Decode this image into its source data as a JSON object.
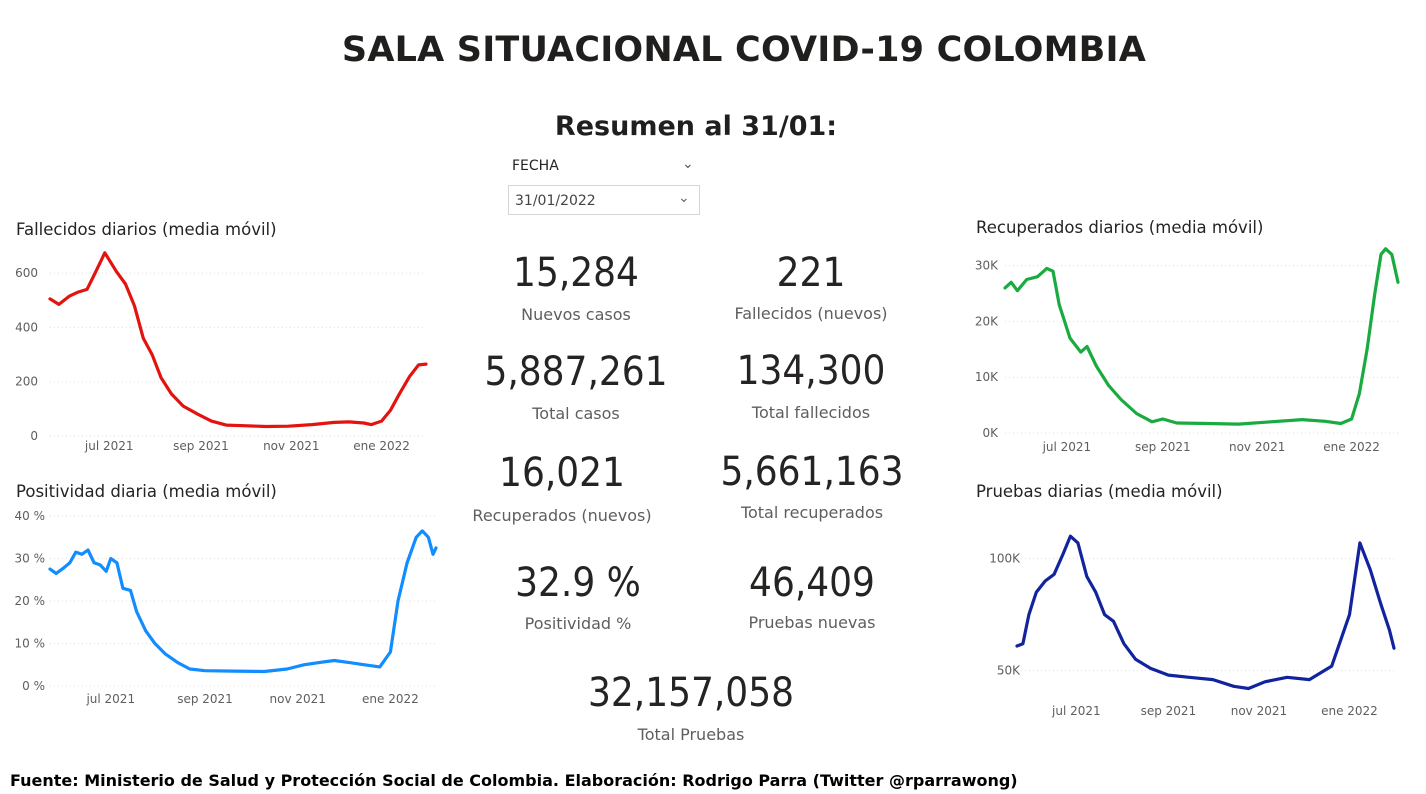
{
  "header": {
    "title": "SALA SITUACIONAL COVID-19 COLOMBIA",
    "summary": "Resumen al 31/01:"
  },
  "slicer": {
    "label": "FECHA",
    "value": "31/01/2022"
  },
  "kpis": [
    {
      "value": "15,284",
      "label": "Nuevos casos"
    },
    {
      "value": "221",
      "label": "Fallecidos (nuevos)"
    },
    {
      "value": "5,887,261",
      "label": "Total casos"
    },
    {
      "value": "134,300",
      "label": "Total fallecidos"
    },
    {
      "value": "16,021",
      "label": "Recuperados (nuevos)"
    },
    {
      "value": "5,661,163",
      "label": "Total recuperados"
    },
    {
      "value": "32.9 %",
      "label": "Positividad %"
    },
    {
      "value": "46,409",
      "label": "Pruebas nuevas"
    },
    {
      "value": "32,157,058",
      "label": "Total Pruebas"
    }
  ],
  "footer": {
    "source": "Fuente: Ministerio de Salud y Protección Social de Colombia. Elaboración: Rodrigo Parra (Twitter @rparrawong)"
  },
  "chart_data": [
    {
      "id": "fallecidos",
      "type": "line",
      "title": "Fallecidos diarios (media móvil)",
      "color": "#e3140f",
      "x_range": [
        "2021-05-22",
        "2022-01-31"
      ],
      "x_ticks": [
        {
          "date": "2021-07-01",
          "label": "jul 2021"
        },
        {
          "date": "2021-09-01",
          "label": "sep 2021"
        },
        {
          "date": "2021-11-01",
          "label": "nov 2021"
        },
        {
          "date": "2022-01-01",
          "label": "ene 2022"
        }
      ],
      "ylim": [
        0,
        700
      ],
      "y_ticks": [
        {
          "value": 0,
          "label": "0"
        },
        {
          "value": 200,
          "label": "200"
        },
        {
          "value": 400,
          "label": "400"
        },
        {
          "value": 600,
          "label": "600"
        }
      ],
      "series": [
        {
          "points": [
            [
              "2021-05-22",
              505
            ],
            [
              "2021-05-28",
              485
            ],
            [
              "2021-06-04",
              515
            ],
            [
              "2021-06-10",
              530
            ],
            [
              "2021-06-16",
              540
            ],
            [
              "2021-06-21",
              595
            ],
            [
              "2021-06-25",
              640
            ],
            [
              "2021-06-28",
              675
            ],
            [
              "2021-07-02",
              640
            ],
            [
              "2021-07-06",
              605
            ],
            [
              "2021-07-12",
              560
            ],
            [
              "2021-07-18",
              480
            ],
            [
              "2021-07-24",
              360
            ],
            [
              "2021-07-30",
              300
            ],
            [
              "2021-08-05",
              215
            ],
            [
              "2021-08-12",
              155
            ],
            [
              "2021-08-20",
              110
            ],
            [
              "2021-08-30",
              80
            ],
            [
              "2021-09-08",
              55
            ],
            [
              "2021-09-18",
              40
            ],
            [
              "2021-09-30",
              38
            ],
            [
              "2021-10-15",
              35
            ],
            [
              "2021-10-30",
              36
            ],
            [
              "2021-11-15",
              42
            ],
            [
              "2021-11-30",
              50
            ],
            [
              "2021-12-10",
              52
            ],
            [
              "2021-12-20",
              48
            ],
            [
              "2021-12-25",
              42
            ],
            [
              "2022-01-01",
              55
            ],
            [
              "2022-01-07",
              95
            ],
            [
              "2022-01-13",
              155
            ],
            [
              "2022-01-20",
              220
            ],
            [
              "2022-01-26",
              262
            ],
            [
              "2022-01-31",
              265
            ]
          ]
        }
      ]
    },
    {
      "id": "positividad",
      "type": "line",
      "title": "Positividad diaria (media móvil)",
      "color": "#118dff",
      "x_range": [
        "2021-05-22",
        "2022-01-31"
      ],
      "x_ticks": [
        {
          "date": "2021-07-01",
          "label": "jul 2021"
        },
        {
          "date": "2021-09-01",
          "label": "sep 2021"
        },
        {
          "date": "2021-11-01",
          "label": "nov 2021"
        },
        {
          "date": "2022-01-01",
          "label": "ene 2022"
        }
      ],
      "ylim": [
        0,
        40
      ],
      "y_ticks": [
        {
          "value": 0,
          "label": "0 %"
        },
        {
          "value": 10,
          "label": "10 %"
        },
        {
          "value": 20,
          "label": "20 %"
        },
        {
          "value": 30,
          "label": "30 %"
        },
        {
          "value": 40,
          "label": "40 %"
        }
      ],
      "series": [
        {
          "points": [
            [
              "2021-05-22",
              27.5
            ],
            [
              "2021-05-26",
              26.5
            ],
            [
              "2021-05-30",
              27.5
            ],
            [
              "2021-06-04",
              29
            ],
            [
              "2021-06-08",
              31.5
            ],
            [
              "2021-06-12",
              31
            ],
            [
              "2021-06-16",
              32
            ],
            [
              "2021-06-20",
              29
            ],
            [
              "2021-06-24",
              28.5
            ],
            [
              "2021-06-28",
              27
            ],
            [
              "2021-07-01",
              30
            ],
            [
              "2021-07-05",
              29
            ],
            [
              "2021-07-09",
              23
            ],
            [
              "2021-07-14",
              22.5
            ],
            [
              "2021-07-18",
              17.5
            ],
            [
              "2021-07-24",
              13
            ],
            [
              "2021-07-30",
              10
            ],
            [
              "2021-08-06",
              7.5
            ],
            [
              "2021-08-14",
              5.5
            ],
            [
              "2021-08-22",
              4
            ],
            [
              "2021-09-01",
              3.6
            ],
            [
              "2021-09-20",
              3.5
            ],
            [
              "2021-10-10",
              3.4
            ],
            [
              "2021-10-25",
              4
            ],
            [
              "2021-11-05",
              5
            ],
            [
              "2021-11-15",
              5.5
            ],
            [
              "2021-11-25",
              6
            ],
            [
              "2021-12-05",
              5.5
            ],
            [
              "2021-12-15",
              5
            ],
            [
              "2021-12-25",
              4.5
            ],
            [
              "2022-01-01",
              8
            ],
            [
              "2022-01-06",
              20
            ],
            [
              "2022-01-12",
              29
            ],
            [
              "2022-01-18",
              35
            ],
            [
              "2022-01-22",
              36.5
            ],
            [
              "2022-01-26",
              35
            ],
            [
              "2022-01-29",
              31
            ],
            [
              "2022-01-31",
              32.5
            ]
          ]
        }
      ]
    },
    {
      "id": "recuperados",
      "type": "line",
      "title": "Recuperados diarios (media móvil)",
      "color": "#1aab40",
      "x_range": [
        "2021-05-22",
        "2022-01-31"
      ],
      "x_ticks": [
        {
          "date": "2021-07-01",
          "label": "jul 2021"
        },
        {
          "date": "2021-09-01",
          "label": "sep 2021"
        },
        {
          "date": "2021-11-01",
          "label": "nov 2021"
        },
        {
          "date": "2022-01-01",
          "label": "ene 2022"
        }
      ],
      "ylim": [
        0,
        31000
      ],
      "y_ticks": [
        {
          "value": 0,
          "label": "0K"
        },
        {
          "value": 10000,
          "label": "10K"
        },
        {
          "value": 20000,
          "label": "20K"
        },
        {
          "value": 30000,
          "label": "30K"
        }
      ],
      "series": [
        {
          "points": [
            [
              "2021-05-22",
              26000
            ],
            [
              "2021-05-26",
              27000
            ],
            [
              "2021-05-30",
              25500
            ],
            [
              "2021-06-05",
              27500
            ],
            [
              "2021-06-12",
              28000
            ],
            [
              "2021-06-18",
              29500
            ],
            [
              "2021-06-22",
              29000
            ],
            [
              "2021-06-26",
              23000
            ],
            [
              "2021-07-03",
              17000
            ],
            [
              "2021-07-10",
              14500
            ],
            [
              "2021-07-14",
              15500
            ],
            [
              "2021-07-20",
              12000
            ],
            [
              "2021-07-28",
              8500
            ],
            [
              "2021-08-05",
              6000
            ],
            [
              "2021-08-15",
              3500
            ],
            [
              "2021-08-25",
              2000
            ],
            [
              "2021-09-01",
              2500
            ],
            [
              "2021-09-10",
              1800
            ],
            [
              "2021-09-30",
              1700
            ],
            [
              "2021-10-20",
              1600
            ],
            [
              "2021-11-10",
              2000
            ],
            [
              "2021-11-30",
              2400
            ],
            [
              "2021-12-15",
              2100
            ],
            [
              "2021-12-25",
              1700
            ],
            [
              "2022-01-01",
              2500
            ],
            [
              "2022-01-06",
              7000
            ],
            [
              "2022-01-11",
              15000
            ],
            [
              "2022-01-16",
              25000
            ],
            [
              "2022-01-20",
              32000
            ],
            [
              "2022-01-23",
              33000
            ],
            [
              "2022-01-27",
              32000
            ],
            [
              "2022-01-31",
              27000
            ]
          ]
        }
      ]
    },
    {
      "id": "pruebas",
      "type": "line",
      "title": "Pruebas diarias (media móvil)",
      "color": "#12239e",
      "x_range": [
        "2021-05-22",
        "2022-01-31"
      ],
      "x_ticks": [
        {
          "date": "2021-07-01",
          "label": "jul 2021"
        },
        {
          "date": "2021-09-01",
          "label": "sep 2021"
        },
        {
          "date": "2021-11-01",
          "label": "nov 2021"
        },
        {
          "date": "2022-01-01",
          "label": "ene 2022"
        }
      ],
      "ylim": [
        40000,
        115000
      ],
      "y_ticks": [
        {
          "value": 50000,
          "label": "50K"
        },
        {
          "value": 100000,
          "label": "100K"
        }
      ],
      "series": [
        {
          "points": [
            [
              "2021-05-22",
              61000
            ],
            [
              "2021-05-26",
              62000
            ],
            [
              "2021-05-30",
              75000
            ],
            [
              "2021-06-04",
              85000
            ],
            [
              "2021-06-10",
              90000
            ],
            [
              "2021-06-16",
              93000
            ],
            [
              "2021-06-22",
              102000
            ],
            [
              "2021-06-27",
              110000
            ],
            [
              "2021-07-02",
              107000
            ],
            [
              "2021-07-08",
              92000
            ],
            [
              "2021-07-14",
              85000
            ],
            [
              "2021-07-20",
              75000
            ],
            [
              "2021-07-26",
              72000
            ],
            [
              "2021-08-02",
              62000
            ],
            [
              "2021-08-10",
              55000
            ],
            [
              "2021-08-20",
              51000
            ],
            [
              "2021-09-01",
              48000
            ],
            [
              "2021-09-15",
              47000
            ],
            [
              "2021-10-01",
              46000
            ],
            [
              "2021-10-15",
              43000
            ],
            [
              "2021-10-25",
              42000
            ],
            [
              "2021-11-05",
              45000
            ],
            [
              "2021-11-20",
              47000
            ],
            [
              "2021-12-05",
              46000
            ],
            [
              "2021-12-20",
              52000
            ],
            [
              "2022-01-01",
              75000
            ],
            [
              "2022-01-08",
              107000
            ],
            [
              "2022-01-15",
              95000
            ],
            [
              "2022-01-22",
              80000
            ],
            [
              "2022-01-28",
              68000
            ],
            [
              "2022-01-31",
              60000
            ]
          ]
        }
      ]
    }
  ]
}
